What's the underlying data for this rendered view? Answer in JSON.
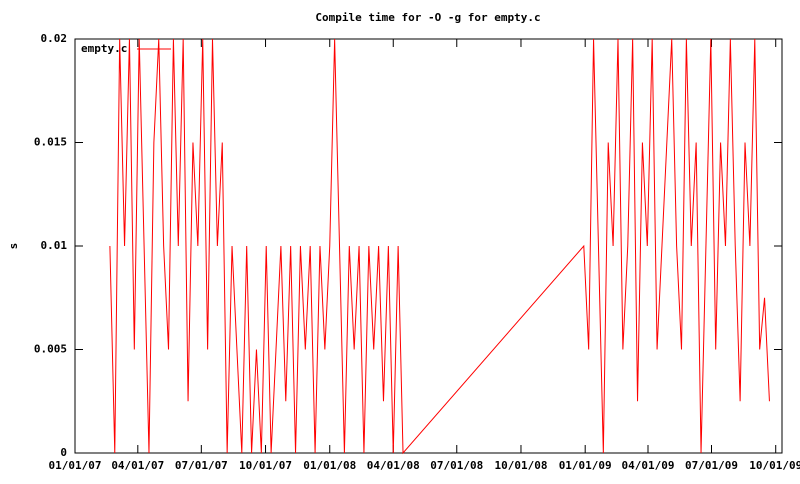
{
  "chart_data": {
    "type": "line",
    "title": "Compile time for -O -g for empty.c",
    "ylabel": "s",
    "legend": "top-left",
    "xlim": [
      "2007-01-01",
      "2009-10-10"
    ],
    "xticks": [
      {
        "value": "2007-01-01",
        "label": "01/01/07"
      },
      {
        "value": "2007-04-01",
        "label": "04/01/07"
      },
      {
        "value": "2007-07-01",
        "label": "07/01/07"
      },
      {
        "value": "2007-10-01",
        "label": "10/01/07"
      },
      {
        "value": "2008-01-01",
        "label": "01/01/08"
      },
      {
        "value": "2008-04-01",
        "label": "04/01/08"
      },
      {
        "value": "2008-07-01",
        "label": "07/01/08"
      },
      {
        "value": "2008-10-01",
        "label": "10/01/08"
      },
      {
        "value": "2009-01-01",
        "label": "01/01/09"
      },
      {
        "value": "2009-04-01",
        "label": "04/01/09"
      },
      {
        "value": "2009-07-01",
        "label": "07/01/09"
      },
      {
        "value": "2009-10-01",
        "label": "10/01/09"
      }
    ],
    "ylim": [
      0,
      0.02
    ],
    "yticks": [
      0,
      0.005,
      0.01,
      0.015,
      0.02
    ],
    "x": [
      "2007-02-20",
      "2007-02-27",
      "2007-03-06",
      "2007-03-13",
      "2007-03-20",
      "2007-03-27",
      "2007-04-03",
      "2007-04-10",
      "2007-04-17",
      "2007-04-24",
      "2007-05-01",
      "2007-05-08",
      "2007-05-15",
      "2007-05-22",
      "2007-05-29",
      "2007-06-05",
      "2007-06-12",
      "2007-06-19",
      "2007-06-26",
      "2007-07-03",
      "2007-07-10",
      "2007-07-17",
      "2007-07-24",
      "2007-07-31",
      "2007-08-07",
      "2007-08-14",
      "2007-08-21",
      "2007-08-28",
      "2007-09-04",
      "2007-09-11",
      "2007-09-18",
      "2007-09-25",
      "2007-10-02",
      "2007-10-09",
      "2007-10-16",
      "2007-10-23",
      "2007-10-30",
      "2007-11-06",
      "2007-11-13",
      "2007-11-20",
      "2007-11-27",
      "2007-12-04",
      "2007-12-11",
      "2007-12-18",
      "2007-12-25",
      "2008-01-01",
      "2008-01-08",
      "2008-01-15",
      "2008-01-22",
      "2008-01-29",
      "2008-02-05",
      "2008-02-12",
      "2008-02-19",
      "2008-02-26",
      "2008-03-04",
      "2008-03-11",
      "2008-03-18",
      "2008-03-25",
      "2008-04-01",
      "2008-04-08",
      "2008-04-15",
      "2008-12-30",
      "2009-01-06",
      "2009-01-13",
      "2009-01-20",
      "2009-01-27",
      "2009-02-03",
      "2009-02-10",
      "2009-02-17",
      "2009-02-24",
      "2009-03-03",
      "2009-03-10",
      "2009-03-17",
      "2009-03-24",
      "2009-03-31",
      "2009-04-07",
      "2009-04-14",
      "2009-04-21",
      "2009-04-28",
      "2009-05-05",
      "2009-05-12",
      "2009-05-19",
      "2009-05-26",
      "2009-06-02",
      "2009-06-09",
      "2009-06-16",
      "2009-06-23",
      "2009-06-30",
      "2009-07-07",
      "2009-07-14",
      "2009-07-21",
      "2009-07-28",
      "2009-08-04",
      "2009-08-11",
      "2009-08-18",
      "2009-08-25",
      "2009-09-01",
      "2009-09-08",
      "2009-09-15",
      "2009-09-22"
    ],
    "series": [
      {
        "name": "empty.c",
        "color": "#ff0000",
        "values": [
          0.01,
          0,
          0.02,
          0.01,
          0.02,
          0.005,
          0.02,
          0.01,
          0,
          0.015,
          0.02,
          0.01,
          0.005,
          0.02,
          0.01,
          0.02,
          0.0025,
          0.015,
          0.01,
          0.02,
          0.005,
          0.02,
          0.01,
          0.015,
          0,
          0.01,
          0.005,
          0,
          0.01,
          0,
          0.005,
          0,
          0.01,
          0,
          0.005,
          0.01,
          0.0025,
          0.01,
          0,
          0.01,
          0.005,
          0.01,
          0,
          0.01,
          0.005,
          0.01,
          0.02,
          0.01,
          0,
          0.01,
          0.005,
          0.01,
          0,
          0.01,
          0.005,
          0.01,
          0.0025,
          0.01,
          0,
          0.01,
          0,
          0.01,
          0.005,
          0.02,
          0.01,
          0,
          0.015,
          0.01,
          0.02,
          0.005,
          0.01,
          0.02,
          0.0025,
          0.015,
          0.01,
          0.02,
          0.005,
          0.01,
          0.015,
          0.02,
          0.01,
          0.005,
          0.02,
          0.01,
          0.015,
          0,
          0.01,
          0.02,
          0.005,
          0.015,
          0.01,
          0.02,
          0.01,
          0.0025,
          0.015,
          0.01,
          0.02,
          0.005,
          0.0075,
          0.0025
        ]
      }
    ]
  }
}
